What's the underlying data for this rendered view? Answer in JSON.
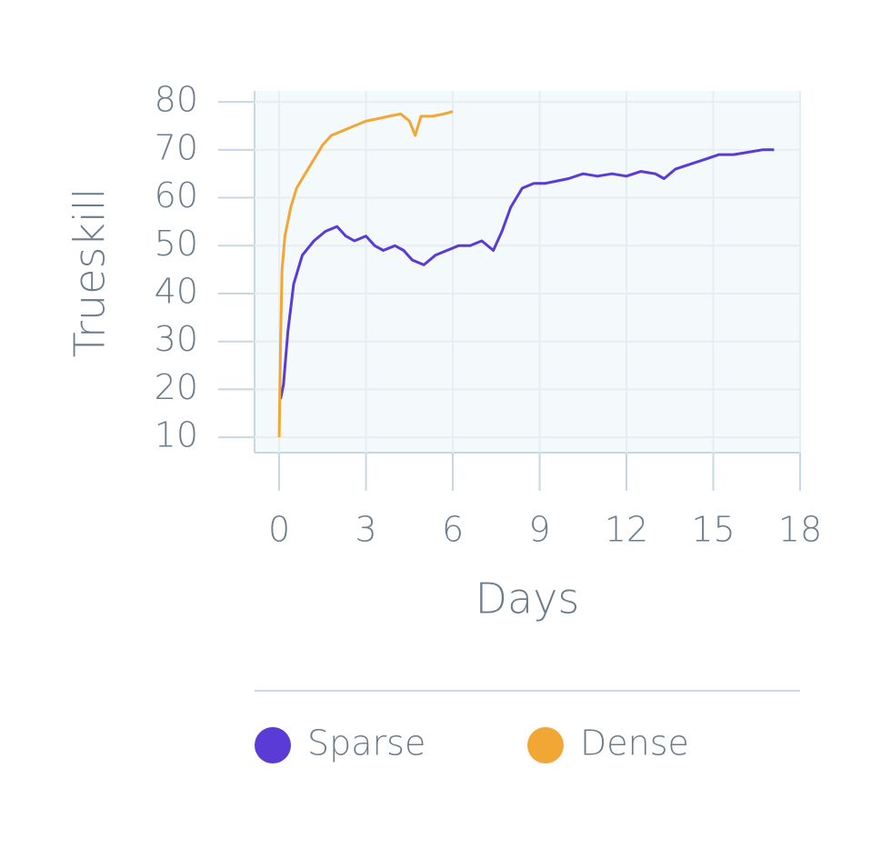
{
  "chart_data": {
    "type": "line",
    "x_label": "Days",
    "y_label": "Trueskill",
    "xlim": [
      -0.85,
      18
    ],
    "ylim": [
      6.8,
      82.3
    ],
    "xticks": [
      0,
      3,
      6,
      9,
      12,
      15,
      18
    ],
    "yticks": [
      10,
      20,
      30,
      40,
      50,
      60,
      70,
      80
    ],
    "grid": true,
    "legend": "bottom",
    "series": [
      {
        "name": "Sparse",
        "color": "#5a3bd6",
        "x": [
          0.05,
          0.15,
          0.3,
          0.5,
          0.8,
          1.2,
          1.6,
          2.0,
          2.3,
          2.6,
          3.0,
          3.3,
          3.6,
          4.0,
          4.3,
          4.6,
          5.0,
          5.4,
          5.8,
          6.2,
          6.6,
          7.0,
          7.4,
          7.7,
          8.0,
          8.4,
          8.8,
          9.2,
          9.6,
          10.0,
          10.5,
          11.0,
          11.5,
          12.0,
          12.5,
          13.0,
          13.3,
          13.7,
          14.2,
          14.7,
          15.2,
          15.7,
          16.2,
          16.7,
          17.1
        ],
        "values": [
          18,
          21,
          32,
          42,
          48,
          51,
          53,
          54,
          52,
          51,
          52,
          50,
          49,
          50,
          49,
          47,
          46,
          48,
          49,
          50,
          50,
          51,
          49,
          53,
          58,
          62,
          63,
          63,
          63.5,
          64,
          65,
          64.5,
          65,
          64.5,
          65.5,
          65,
          64,
          66,
          67,
          68,
          69,
          69,
          69.5,
          70,
          70
        ]
      },
      {
        "name": "Dense",
        "color": "#f2a633",
        "x": [
          0,
          0.05,
          0.1,
          0.2,
          0.4,
          0.6,
          0.9,
          1.2,
          1.5,
          1.8,
          2.2,
          2.6,
          3.0,
          3.4,
          3.8,
          4.2,
          4.5,
          4.7,
          4.9,
          5.3,
          5.7,
          6.0
        ],
        "values": [
          10,
          30,
          45,
          52,
          58,
          62,
          65,
          68,
          71,
          73,
          74,
          75,
          76,
          76.5,
          77,
          77.5,
          76,
          73,
          77,
          77,
          77.5,
          78
        ]
      }
    ]
  }
}
